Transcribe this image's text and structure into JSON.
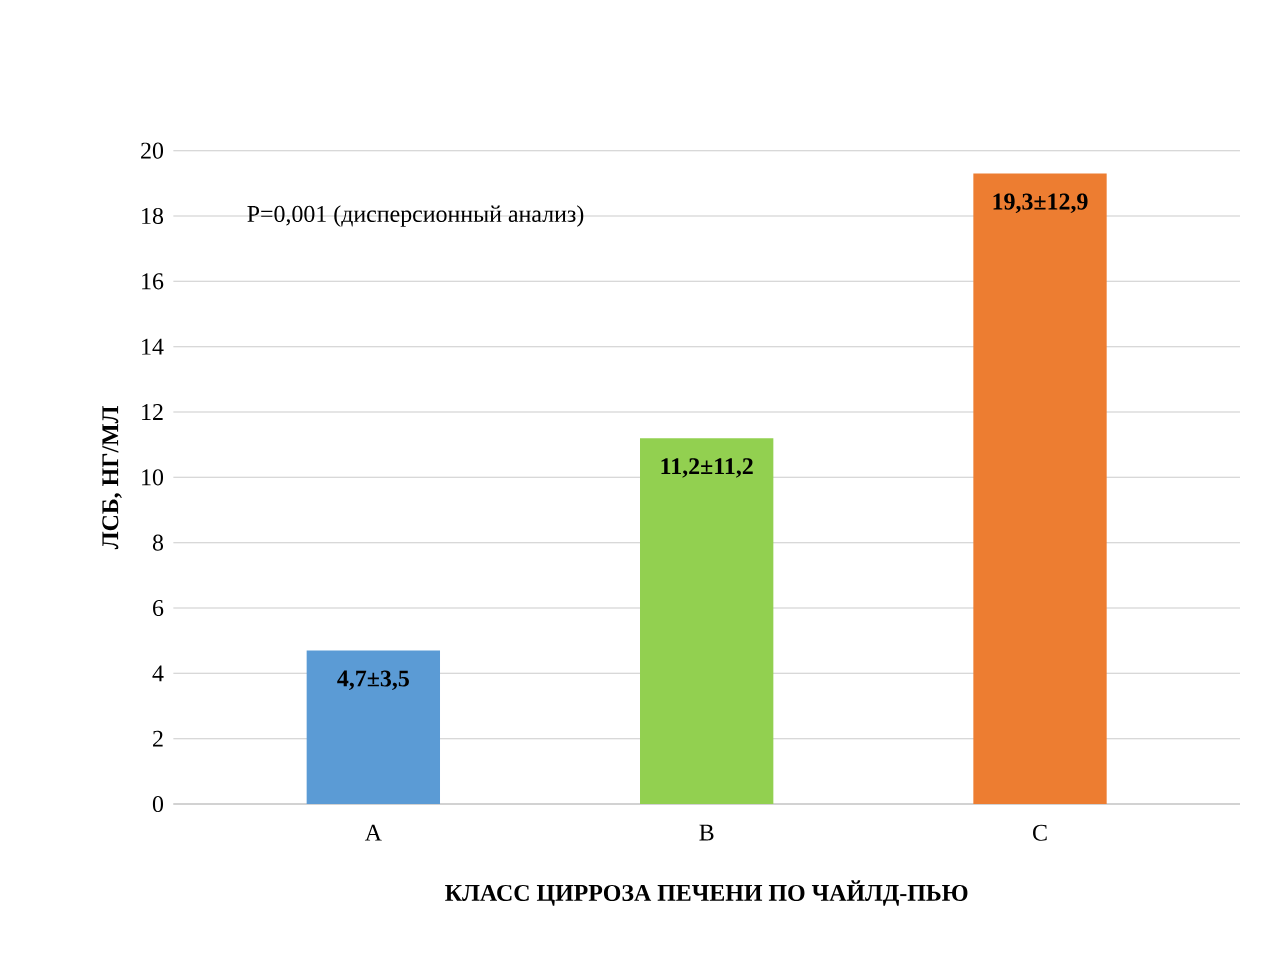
{
  "chart_data": {
    "type": "bar",
    "xlabel": "КЛАСС ЦИРРОЗА ПЕЧЕНИ ПО ЧАЙЛД-ПЬЮ",
    "ylabel": "ЛСБ, НГ/МЛ",
    "categories": [
      "A",
      "B",
      "C"
    ],
    "values": [
      4.7,
      11.2,
      19.3
    ],
    "colors": [
      "#5b9bd5",
      "#92d050",
      "#ed7d31"
    ],
    "value_labels": [
      "4,7±3,5",
      "11,2±11,2",
      "19,3±12,9"
    ],
    "ylim": [
      0,
      20
    ],
    "yticks": [
      0,
      2,
      4,
      6,
      8,
      10,
      12,
      14,
      16,
      18,
      20
    ],
    "grid": "y",
    "annotations": [
      "P=0,001 (дисперсионный анализ)"
    ]
  }
}
